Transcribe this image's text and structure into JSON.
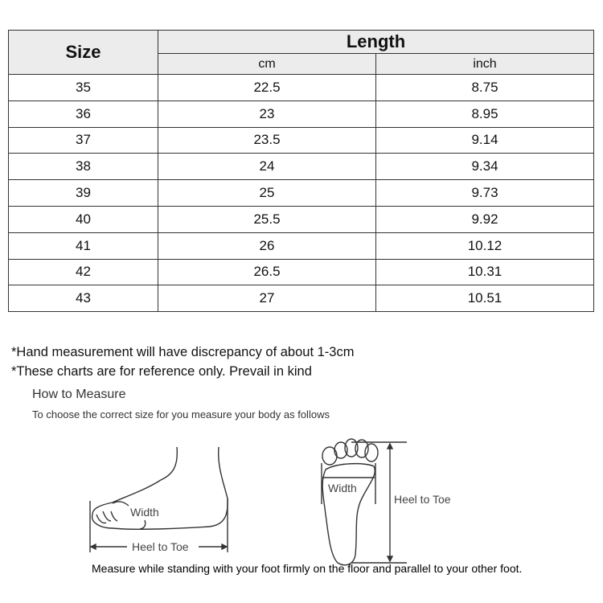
{
  "table": {
    "headers": {
      "size": "Size",
      "length": "Length",
      "cm": "cm",
      "inch": "inch"
    },
    "rows": [
      {
        "size": "35",
        "cm": "22.5",
        "inch": "8.75"
      },
      {
        "size": "36",
        "cm": "23",
        "inch": "8.95"
      },
      {
        "size": "37",
        "cm": "23.5",
        "inch": "9.14"
      },
      {
        "size": "38",
        "cm": "24",
        "inch": "9.34"
      },
      {
        "size": "39",
        "cm": "25",
        "inch": "9.73"
      },
      {
        "size": "40",
        "cm": "25.5",
        "inch": "9.92"
      },
      {
        "size": "41",
        "cm": "26",
        "inch": "10.12"
      },
      {
        "size": "42",
        "cm": "26.5",
        "inch": "10.31"
      },
      {
        "size": "43",
        "cm": "27",
        "inch": "10.51"
      }
    ]
  },
  "notes": [
    "*Hand measurement will have discrepancy of about 1-3cm",
    "*These charts are for reference only. Prevail in kind"
  ],
  "how_to": {
    "title": "How to Measure",
    "subtitle": "To choose the correct size for you measure your body as follows"
  },
  "diagram": {
    "side_width": "Width",
    "side_length": "Heel to Toe",
    "sole_width": "Width",
    "sole_length": "Heel to Toe"
  },
  "instruction": "Measure while standing with your foot firmly on the floor and parallel to your other foot."
}
